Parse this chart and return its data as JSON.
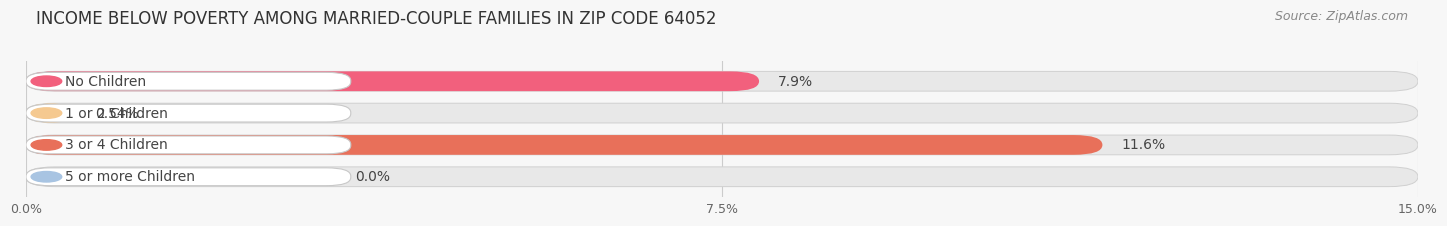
{
  "title": "INCOME BELOW POVERTY AMONG MARRIED-COUPLE FAMILIES IN ZIP CODE 64052",
  "source": "Source: ZipAtlas.com",
  "categories": [
    "No Children",
    "1 or 2 Children",
    "3 or 4 Children",
    "5 or more Children"
  ],
  "values": [
    7.9,
    0.54,
    11.6,
    0.0
  ],
  "bar_colors": [
    "#f2607d",
    "#f5c990",
    "#e8705a",
    "#a8c4e2"
  ],
  "value_labels": [
    "7.9%",
    "0.54%",
    "11.6%",
    "0.0%"
  ],
  "xlim": [
    0,
    15.0
  ],
  "xticks": [
    0.0,
    7.5,
    15.0
  ],
  "xticklabels": [
    "0.0%",
    "7.5%",
    "15.0%"
  ],
  "background_color": "#f7f7f7",
  "bar_bg_color": "#e8e8e8",
  "title_fontsize": 12,
  "source_fontsize": 9,
  "label_fontsize": 10,
  "value_fontsize": 10
}
